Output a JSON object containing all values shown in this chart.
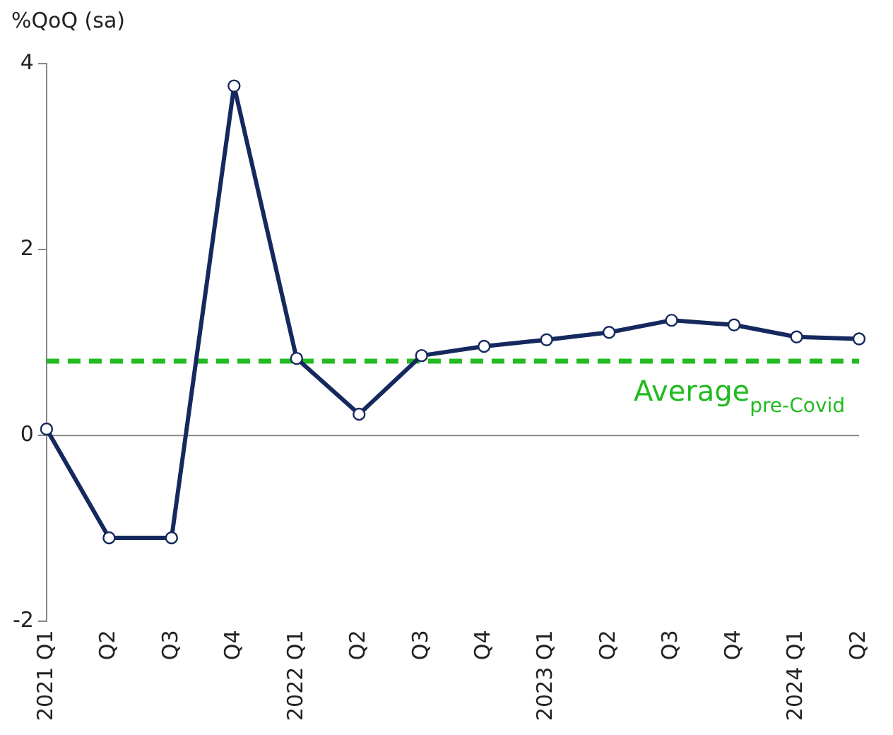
{
  "chart_data": {
    "type": "line",
    "ylabel": "%QoQ (sa)",
    "categories": [
      "2021 Q1",
      "Q2",
      "Q3",
      "Q4",
      "2022 Q1",
      "Q2",
      "Q3",
      "Q4",
      "2023 Q1",
      "Q2",
      "Q3",
      "Q4",
      "2024 Q1",
      "Q2"
    ],
    "series": [
      {
        "color": "#15295e",
        "values": [
          0.07,
          -1.1,
          -1.1,
          3.76,
          0.83,
          0.23,
          0.86,
          0.96,
          1.03,
          1.11,
          1.24,
          1.19,
          1.06,
          1.04
        ]
      }
    ],
    "ylim": [
      -2,
      4
    ],
    "yticks": [
      -2,
      0,
      2,
      4
    ],
    "grid": false,
    "legend": false,
    "marker": "circle",
    "line_style": "solid",
    "ref_lines": [
      {
        "axis": "y",
        "value": 0,
        "color": "#888888",
        "line_style": "solid"
      },
      {
        "axis": "y",
        "value": 0.8,
        "label": "Average$_{pre-Covid}$",
        "color": "#22bb22",
        "line_style": "dashed"
      }
    ]
  }
}
